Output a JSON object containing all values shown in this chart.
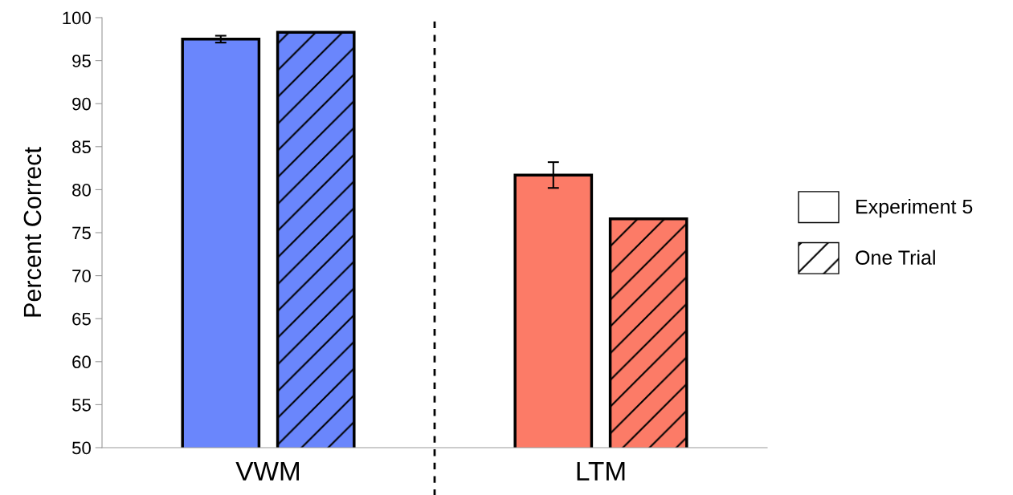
{
  "chart_data": {
    "type": "bar",
    "ylabel": "Percent Correct",
    "categories": [
      "VWM",
      "LTM"
    ],
    "series": [
      {
        "name": "Experiment 5",
        "colors": [
          "#6a86fc",
          "#fc7b67"
        ],
        "values": [
          97.5,
          81.7
        ],
        "errors": [
          0.4,
          1.5
        ]
      },
      {
        "name": "One Trial",
        "colors": [
          "#6a86fc",
          "#fc7b67"
        ],
        "values": [
          98.3,
          76.6
        ]
      }
    ],
    "ylim": [
      50,
      100
    ],
    "yticks": [
      50,
      55,
      60,
      65,
      70,
      75,
      80,
      85,
      90,
      95,
      100
    ],
    "grid": false,
    "legend": "right"
  }
}
